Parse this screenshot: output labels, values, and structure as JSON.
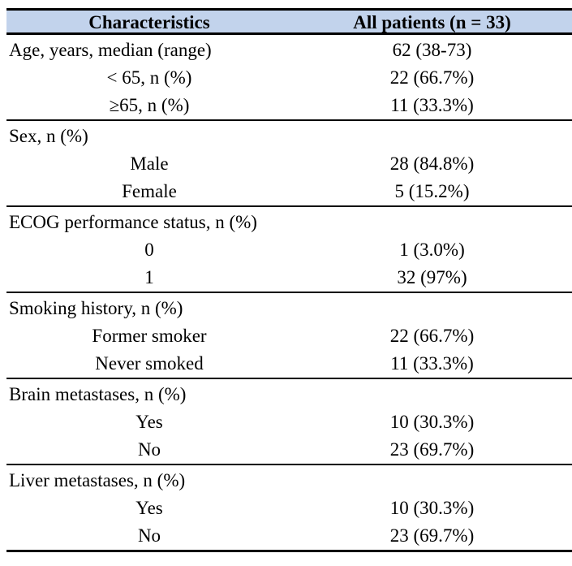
{
  "colors": {
    "header_bg": "#c2d3ec",
    "rule": "#000000",
    "text": "#000000"
  },
  "table": {
    "columns": [
      "Characteristics",
      "All patients (n = 33)"
    ],
    "sections": [
      {
        "rows": [
          {
            "label": "Age, years, median (range)",
            "value": "62 (38-73)",
            "indent": false
          },
          {
            "label": "< 65, n (%)",
            "value": "22 (66.7%)",
            "indent": true
          },
          {
            "label": "≥65, n (%)",
            "value": "11 (33.3%)",
            "indent": true
          }
        ]
      },
      {
        "rows": [
          {
            "label": "Sex, n (%)",
            "value": "",
            "indent": false
          },
          {
            "label": "Male",
            "value": "28 (84.8%)",
            "indent": true
          },
          {
            "label": "Female",
            "value": "5 (15.2%)",
            "indent": true
          }
        ]
      },
      {
        "rows": [
          {
            "label": "ECOG performance status, n (%)",
            "value": "",
            "indent": false
          },
          {
            "label": "0",
            "value": "1 (3.0%)",
            "indent": true
          },
          {
            "label": "1",
            "value": "32 (97%)",
            "indent": true
          }
        ]
      },
      {
        "rows": [
          {
            "label": "Smoking history, n (%)",
            "value": "",
            "indent": false
          },
          {
            "label": "Former smoker",
            "value": "22 (66.7%)",
            "indent": true
          },
          {
            "label": "Never smoked",
            "value": "11 (33.3%)",
            "indent": true
          }
        ]
      },
      {
        "rows": [
          {
            "label": "Brain metastases, n (%)",
            "value": "",
            "indent": false
          },
          {
            "label": "Yes",
            "value": "10 (30.3%)",
            "indent": true
          },
          {
            "label": "No",
            "value": "23 (69.7%)",
            "indent": true
          }
        ]
      },
      {
        "rows": [
          {
            "label": "Liver metastases, n (%)",
            "value": "",
            "indent": false
          },
          {
            "label": "Yes",
            "value": "10 (30.3%)",
            "indent": true
          },
          {
            "label": "No",
            "value": "23 (69.7%)",
            "indent": true
          }
        ]
      }
    ]
  }
}
